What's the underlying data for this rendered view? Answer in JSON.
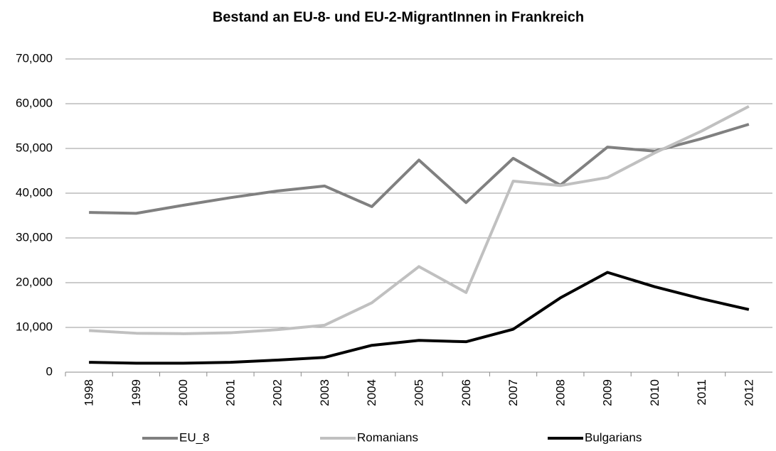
{
  "chart_data": {
    "type": "line",
    "title": "Bestand an EU-8- und EU-2-MigrantInnen in Frankreich",
    "categories": [
      "1998",
      "1999",
      "2000",
      "2001",
      "2002",
      "2003",
      "2004",
      "2005",
      "2006",
      "2007",
      "2008",
      "2009",
      "2010",
      "2011",
      "2012"
    ],
    "series": [
      {
        "name": "EU_8",
        "color": "#808080",
        "values": [
          35700,
          35500,
          37300,
          39000,
          40500,
          41600,
          37000,
          47400,
          37900,
          47800,
          41800,
          50300,
          49400,
          52200,
          55400
        ]
      },
      {
        "name": "Romanians",
        "color": "#c0c0c0",
        "values": [
          9300,
          8700,
          8600,
          8800,
          9500,
          10500,
          15500,
          23600,
          17800,
          42700,
          41700,
          43500,
          49000,
          53900,
          59400
        ]
      },
      {
        "name": "Bulgarians",
        "color": "#000000",
        "values": [
          2200,
          2000,
          2000,
          2200,
          2700,
          3300,
          6000,
          7100,
          6800,
          9600,
          16600,
          22300,
          19100,
          16400,
          14000
        ]
      }
    ],
    "ylim": [
      0,
      70000
    ],
    "yticks": [
      0,
      {
        "value": 10000,
        "label": "10,000"
      },
      {
        "value": 20000,
        "label": "20,000"
      },
      {
        "value": 30000,
        "label": "30,000"
      },
      {
        "value": 40000,
        "label": "40,000"
      },
      {
        "value": 50000,
        "label": "50,000"
      },
      {
        "value": 60000,
        "label": "60,000"
      },
      {
        "value": 70000,
        "label": "70,000"
      }
    ],
    "grid": true,
    "legend": "bottom"
  }
}
